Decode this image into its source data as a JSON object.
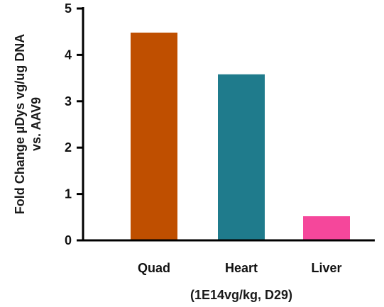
{
  "chart_data": {
    "type": "bar",
    "categories": [
      "Quad",
      "Heart",
      "Liver"
    ],
    "values": [
      4.48,
      3.58,
      0.52
    ],
    "colors": [
      "#bf4f00",
      "#1f7b8c",
      "#f5479b"
    ],
    "ylabel": [
      "Fold Change µDys vg/ug DNA",
      "vs. AAV9"
    ],
    "xlabel": "(1E14vg/kg, D29)",
    "ylim": [
      0,
      5
    ],
    "yticks": [
      "0",
      "1",
      "2",
      "3",
      "4",
      "5"
    ],
    "grid": false,
    "legend": "none"
  }
}
